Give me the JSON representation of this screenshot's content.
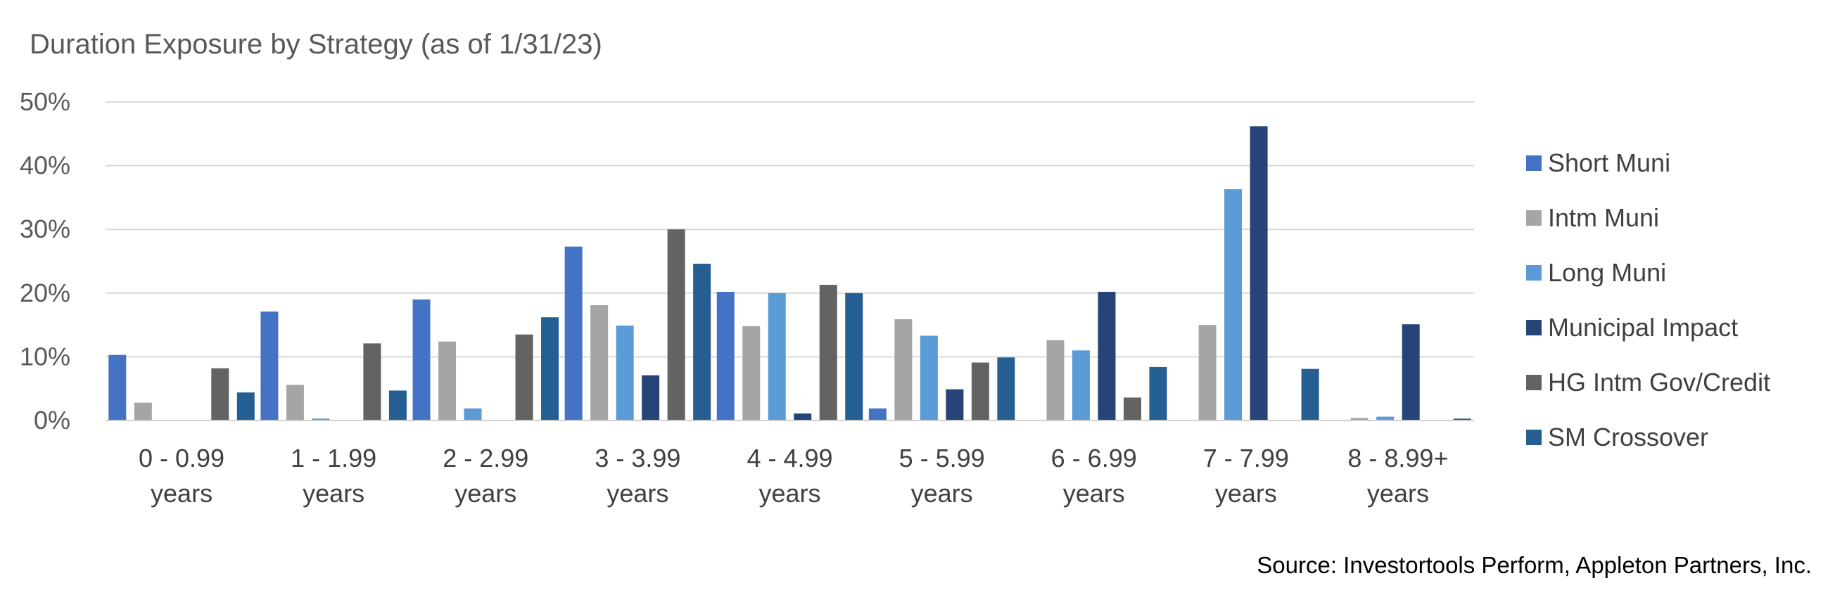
{
  "chart_data": {
    "type": "bar",
    "title": "Duration Exposure by Strategy (as of 1/31/23)",
    "xlabel": "",
    "ylabel": "",
    "ylim": [
      0,
      50
    ],
    "yticks": [
      "0%",
      "10%",
      "20%",
      "30%",
      "40%",
      "50%"
    ],
    "grid": true,
    "legend_position": "right",
    "categories": [
      [
        "0 - 0.99",
        "years"
      ],
      [
        "1 - 1.99",
        "years"
      ],
      [
        "2 - 2.99",
        "years"
      ],
      [
        "3 - 3.99",
        "years"
      ],
      [
        "4 - 4.99",
        "years"
      ],
      [
        "5 - 5.99",
        "years"
      ],
      [
        "6 - 6.99",
        "years"
      ],
      [
        "7 - 7.99",
        "years"
      ],
      [
        "8 - 8.99+",
        "years"
      ]
    ],
    "series": [
      {
        "name": "Short Muni",
        "color": "#4472C4",
        "values": [
          10.3,
          17.1,
          19.0,
          27.3,
          20.2,
          1.9,
          0,
          0,
          0
        ]
      },
      {
        "name": "Intm Muni",
        "color": "#A5A5A5",
        "values": [
          2.8,
          5.6,
          12.4,
          18.1,
          14.8,
          15.9,
          12.6,
          15.0,
          0.4
        ]
      },
      {
        "name": "Long Muni",
        "color": "#5B9BD5",
        "values": [
          0,
          0.3,
          1.9,
          14.9,
          20.0,
          13.3,
          11.0,
          36.3,
          0.6
        ]
      },
      {
        "name": "Municipal Impact",
        "color": "#264478",
        "values": [
          0,
          0,
          0,
          7.1,
          1.1,
          4.9,
          20.2,
          46.2,
          15.1
        ]
      },
      {
        "name": "HG Intm Gov/Credit",
        "color": "#636363",
        "values": [
          8.2,
          12.1,
          13.5,
          30.0,
          21.3,
          9.1,
          3.6,
          0,
          0
        ]
      },
      {
        "name": "SM Crossover",
        "color": "#255E91",
        "values": [
          4.4,
          4.7,
          16.2,
          24.6,
          20.0,
          9.9,
          8.4,
          8.1,
          0.3
        ]
      }
    ]
  },
  "source_note": "Source:  Investortools Perform, Appleton Partners, Inc."
}
